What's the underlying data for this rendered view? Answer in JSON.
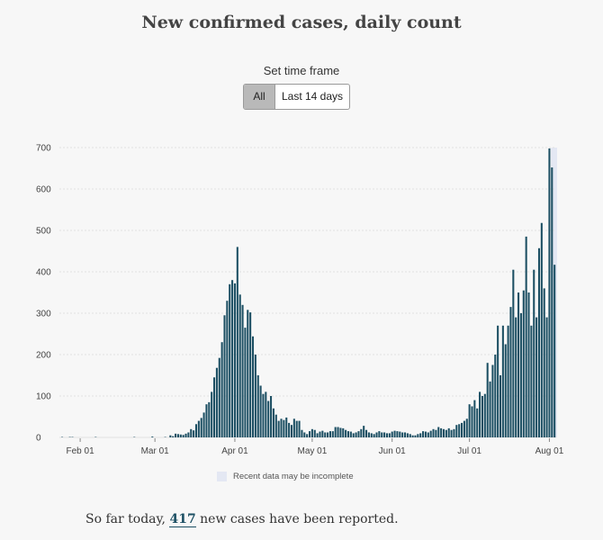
{
  "title": "New confirmed cases, daily count",
  "time_frame": {
    "label": "Set time frame",
    "options": [
      "All",
      "Last 14 days"
    ],
    "selected": "All"
  },
  "legend": {
    "incomplete_label": "Recent data may be incomplete"
  },
  "summary": {
    "prefix": "So far today,",
    "value": "417",
    "suffix": "new cases have been reported."
  },
  "colors": {
    "bar": "#1c4f63",
    "incomplete_band": "#e4e8f3",
    "grid": "#e2e2e2"
  },
  "chart_data": {
    "type": "bar",
    "x_start": "2020-01-25",
    "x_ticks": [
      "Feb 01",
      "Mar 01",
      "Apr 01",
      "May 01",
      "Jun 01",
      "Jul 01",
      "Aug 01"
    ],
    "y_ticks": [
      0,
      100,
      200,
      300,
      400,
      500,
      600,
      700
    ],
    "ylim": [
      0,
      700
    ],
    "grid": true,
    "incomplete_region": "last 2 days",
    "values": [
      1,
      0,
      0,
      1,
      1,
      0,
      0,
      0,
      0,
      0,
      0,
      0,
      0,
      1,
      0,
      0,
      0,
      0,
      0,
      0,
      0,
      0,
      0,
      0,
      0,
      0,
      0,
      0,
      1,
      0,
      0,
      0,
      0,
      0,
      0,
      2,
      0,
      0,
      0,
      0,
      1,
      0,
      5,
      3,
      9,
      8,
      7,
      6,
      9,
      12,
      20,
      17,
      32,
      40,
      47,
      60,
      80,
      85,
      110,
      145,
      168,
      192,
      230,
      295,
      330,
      370,
      380,
      372,
      460,
      345,
      320,
      265,
      308,
      302,
      244,
      200,
      150,
      125,
      105,
      110,
      88,
      100,
      70,
      55,
      40,
      45,
      42,
      48,
      35,
      30,
      45,
      40,
      40,
      18,
      12,
      8,
      15,
      20,
      18,
      10,
      14,
      16,
      12,
      12,
      15,
      15,
      25,
      25,
      23,
      22,
      18,
      15,
      14,
      10,
      12,
      15,
      20,
      28,
      18,
      12,
      10,
      8,
      12,
      15,
      12,
      12,
      10,
      10,
      14,
      16,
      15,
      14,
      12,
      12,
      10,
      8,
      5,
      5,
      8,
      10,
      15,
      14,
      12,
      16,
      20,
      18,
      25,
      22,
      20,
      18,
      22,
      18,
      20,
      30,
      32,
      35,
      40,
      45,
      80,
      75,
      90,
      70,
      110,
      100,
      105,
      180,
      135,
      175,
      200,
      270,
      150,
      270,
      225,
      270,
      315,
      405,
      290,
      350,
      300,
      355,
      485,
      350,
      270,
      405,
      290,
      457,
      518,
      360,
      290,
      698,
      652,
      417
    ]
  }
}
